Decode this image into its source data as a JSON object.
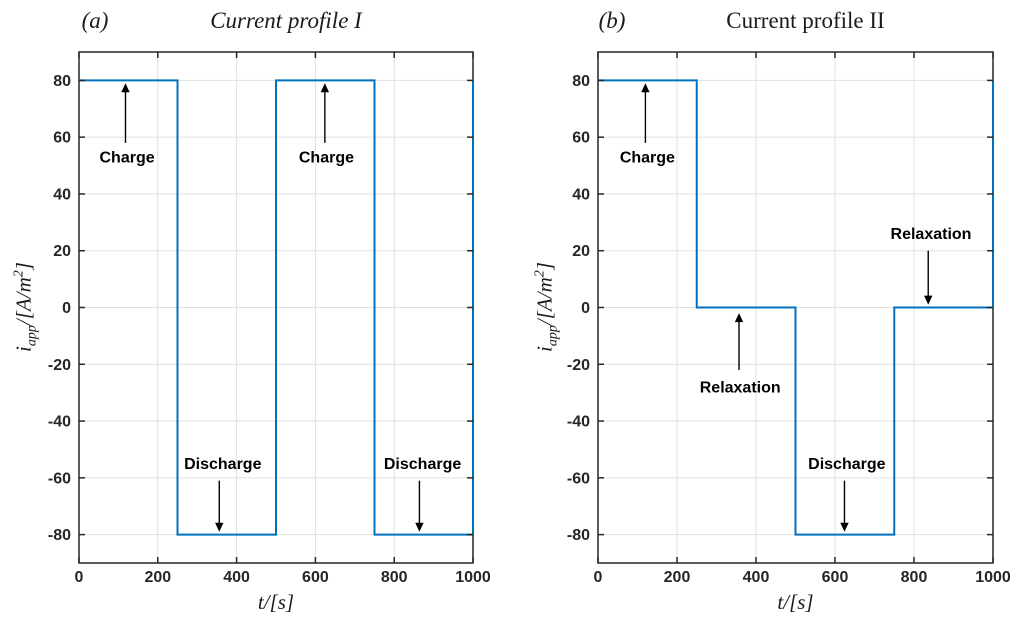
{
  "figure": {
    "background": "#ffffff",
    "colors": {
      "line": "#0072BD",
      "grid": "#e0e0e0",
      "axis": "#262626",
      "annotation": "#000000"
    }
  },
  "chart_data": [
    {
      "type": "line",
      "step": true,
      "panel_label": "(a)",
      "title": "Current profile I",
      "xlabel": "t/[s]",
      "ylabel": {
        "var": "i",
        "var_sub": "app",
        "sep": "/[",
        "unit": "A/m",
        "unit_sup": "2",
        "close": "]"
      },
      "xlim": [
        0,
        1000
      ],
      "ylim": [
        -90,
        90
      ],
      "xticks": [
        0,
        200,
        400,
        600,
        800,
        1000
      ],
      "yticks": [
        -80,
        -60,
        -40,
        -20,
        0,
        20,
        40,
        60,
        80
      ],
      "grid": true,
      "line_color": "#0072BD",
      "x": [
        0,
        250,
        250,
        500,
        500,
        750,
        750,
        1000,
        1000
      ],
      "y": [
        80,
        80,
        -80,
        -80,
        80,
        80,
        -80,
        -80,
        80
      ],
      "annotations": [
        {
          "label": "Charge",
          "text_x": 122,
          "text_y": 53,
          "arrow_x": 118,
          "arrow_from": 58,
          "arrow_to": 79
        },
        {
          "label": "Charge",
          "text_x": 628,
          "text_y": 53,
          "arrow_x": 624,
          "arrow_from": 58,
          "arrow_to": 79
        },
        {
          "label": "Discharge",
          "text_x": 365,
          "text_y": -55,
          "arrow_x": 356,
          "arrow_from": -61,
          "arrow_to": -79
        },
        {
          "label": "Discharge",
          "text_x": 872,
          "text_y": -55,
          "arrow_x": 864,
          "arrow_from": -61,
          "arrow_to": -79
        }
      ]
    },
    {
      "type": "line",
      "step": true,
      "panel_label": "(b)",
      "title": "Current profile II",
      "xlabel": "t/[s]",
      "ylabel": {
        "var": "i",
        "var_sub": "app",
        "sep": "/[",
        "unit": "A/m",
        "unit_sup": "2",
        "close": "]"
      },
      "xlim": [
        0,
        1000
      ],
      "ylim": [
        -90,
        90
      ],
      "xticks": [
        0,
        200,
        400,
        600,
        800,
        1000
      ],
      "yticks": [
        -80,
        -60,
        -40,
        -20,
        0,
        20,
        40,
        60,
        80
      ],
      "grid": true,
      "line_color": "#0072BD",
      "x": [
        0,
        250,
        250,
        500,
        500,
        750,
        750,
        1000,
        1000
      ],
      "y": [
        80,
        80,
        0,
        0,
        -80,
        -80,
        0,
        0,
        80
      ],
      "annotations": [
        {
          "label": "Charge",
          "text_x": 125,
          "text_y": 53,
          "arrow_x": 120,
          "arrow_from": 58,
          "arrow_to": 79
        },
        {
          "label": "Relaxation",
          "text_x": 843,
          "text_y": 26,
          "arrow_x": 836,
          "arrow_from": 20,
          "arrow_to": 1
        },
        {
          "label": "Relaxation",
          "text_x": 360,
          "text_y": -28,
          "arrow_x": 357,
          "arrow_from": -22,
          "arrow_to": -2
        },
        {
          "label": "Discharge",
          "text_x": 630,
          "text_y": -55,
          "arrow_x": 624,
          "arrow_from": -61,
          "arrow_to": -79
        }
      ]
    }
  ]
}
